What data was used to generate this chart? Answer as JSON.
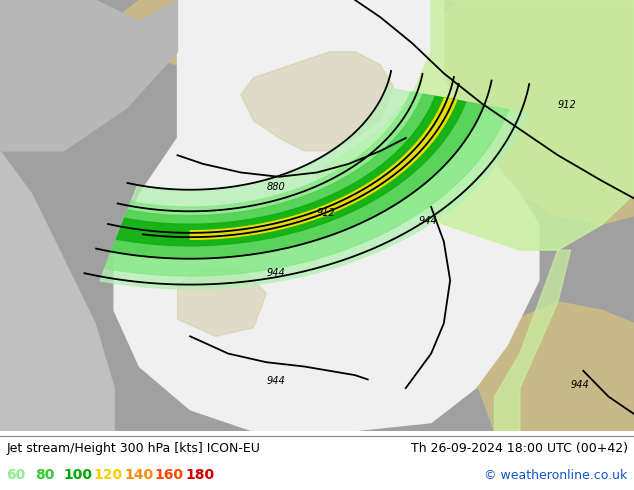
{
  "title_left": "Jet stream/Height 300 hPa [kts] ICON-EU",
  "title_right": "Th 26-09-2024 18:00 UTC (00+42)",
  "copyright": "© weatheronline.co.uk",
  "legend_values": [
    "60",
    "80",
    "100",
    "120",
    "140",
    "160",
    "180"
  ],
  "legend_colors": [
    "#90ee90",
    "#32cd32",
    "#00aa00",
    "#ffcc00",
    "#ff8c00",
    "#ff4500",
    "#cc0000"
  ],
  "bg_color": "#ffffff",
  "title_fontsize": 9,
  "legend_fontsize": 10,
  "copyright_fontsize": 9,
  "fig_width": 6.34,
  "fig_height": 4.9,
  "dpi": 100
}
